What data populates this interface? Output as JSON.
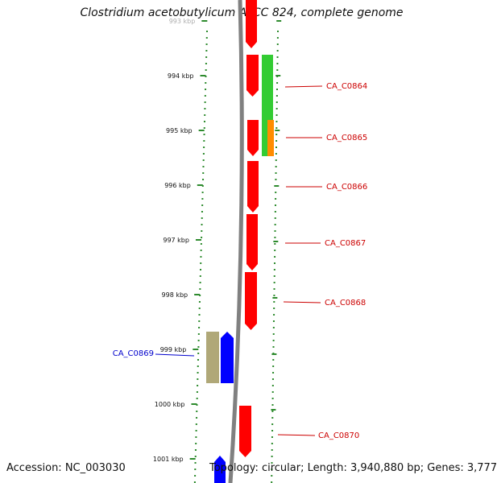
{
  "title": "Clostridium acetobutylicum ATCC 824, complete genome",
  "footer": {
    "accession": "Accession: NC_003030",
    "topology": "Topology: circular; Length: 3,940,880 bp; Genes: 3,777"
  },
  "colors": {
    "backbone": "#808080",
    "tick": "#2e8b2e",
    "gene_red": "#ff0000",
    "gene_green": "#33cc33",
    "gene_orange": "#ff8c00",
    "gene_olive": "#b0a878",
    "gene_blue": "#0000ff",
    "label_red": "#cc0000",
    "label_blue": "#0000cc"
  },
  "scale_labels": [
    "993 kbp",
    "994 kbp",
    "995 kbp",
    "996 kbp",
    "997 kbp",
    "998 kbp",
    "999 kbp",
    "1000 kbp",
    "1001 kbp"
  ],
  "genes": [
    {
      "name": "",
      "color": "red",
      "strand": "+"
    },
    {
      "name": "CA_C0864",
      "color": "red",
      "strand": "+"
    },
    {
      "name": "",
      "color": "green",
      "strand": "+"
    },
    {
      "name": "CA_C0865",
      "color": "red",
      "strand": "+"
    },
    {
      "name": "",
      "color": "orange",
      "strand": "+"
    },
    {
      "name": "CA_C0866",
      "color": "red",
      "strand": "+"
    },
    {
      "name": "CA_C0867",
      "color": "red",
      "strand": "+"
    },
    {
      "name": "CA_C0868",
      "color": "red",
      "strand": "+"
    },
    {
      "name": "CA_C0869",
      "color": "olive",
      "strand": "-"
    },
    {
      "name": "",
      "color": "blue",
      "strand": "-"
    },
    {
      "name": "CA_C0870",
      "color": "red",
      "strand": "+"
    },
    {
      "name": "",
      "color": "blue",
      "strand": "-"
    }
  ]
}
